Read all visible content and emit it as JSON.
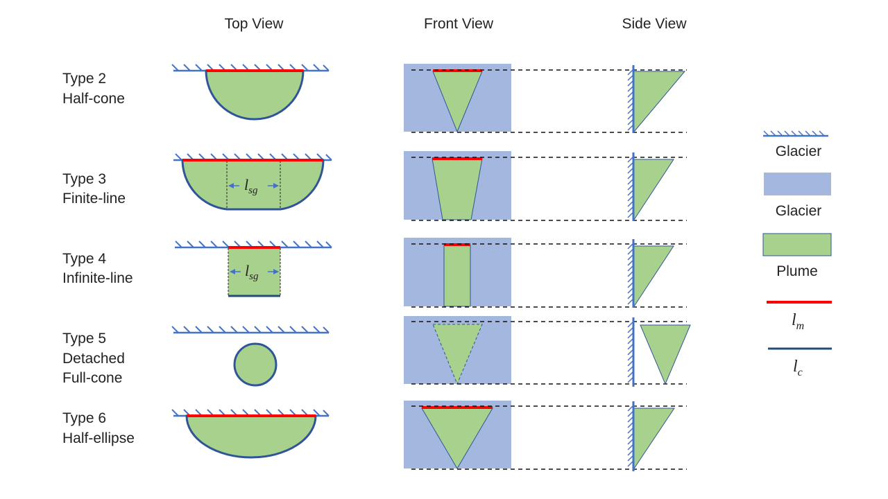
{
  "headers": {
    "top_view": "Top View",
    "front_view": "Front View",
    "side_view": "Side View"
  },
  "rows": [
    {
      "line1": "Type 2",
      "line2": "Half-cone",
      "line3": ""
    },
    {
      "line1": "Type 3",
      "line2": "Finite-line",
      "line3": ""
    },
    {
      "line1": "Type 4",
      "line2": "Infinite-line",
      "line3": ""
    },
    {
      "line1": "Type 5",
      "line2": "Detached",
      "line3": "Full-cone"
    },
    {
      "line1": "Type 6",
      "line2": "Half-ellipse",
      "line3": ""
    }
  ],
  "annotations": {
    "lsg_base": "l",
    "lsg_sub": "sg"
  },
  "legend": {
    "glacier_wall": "Glacier",
    "glacier_fill": "Glacier",
    "plume": "Plume",
    "lm_base": "l",
    "lm_sub": "m",
    "lc_base": "l",
    "lc_sub": "c"
  },
  "colors": {
    "glacier_blue": "#a3b7df",
    "wall_blue": "#4472c4",
    "plume_green": "#a9d18e",
    "outline_navy": "#2f5597",
    "lm_red": "#ff0000",
    "lc_navy": "#1f4e79"
  }
}
